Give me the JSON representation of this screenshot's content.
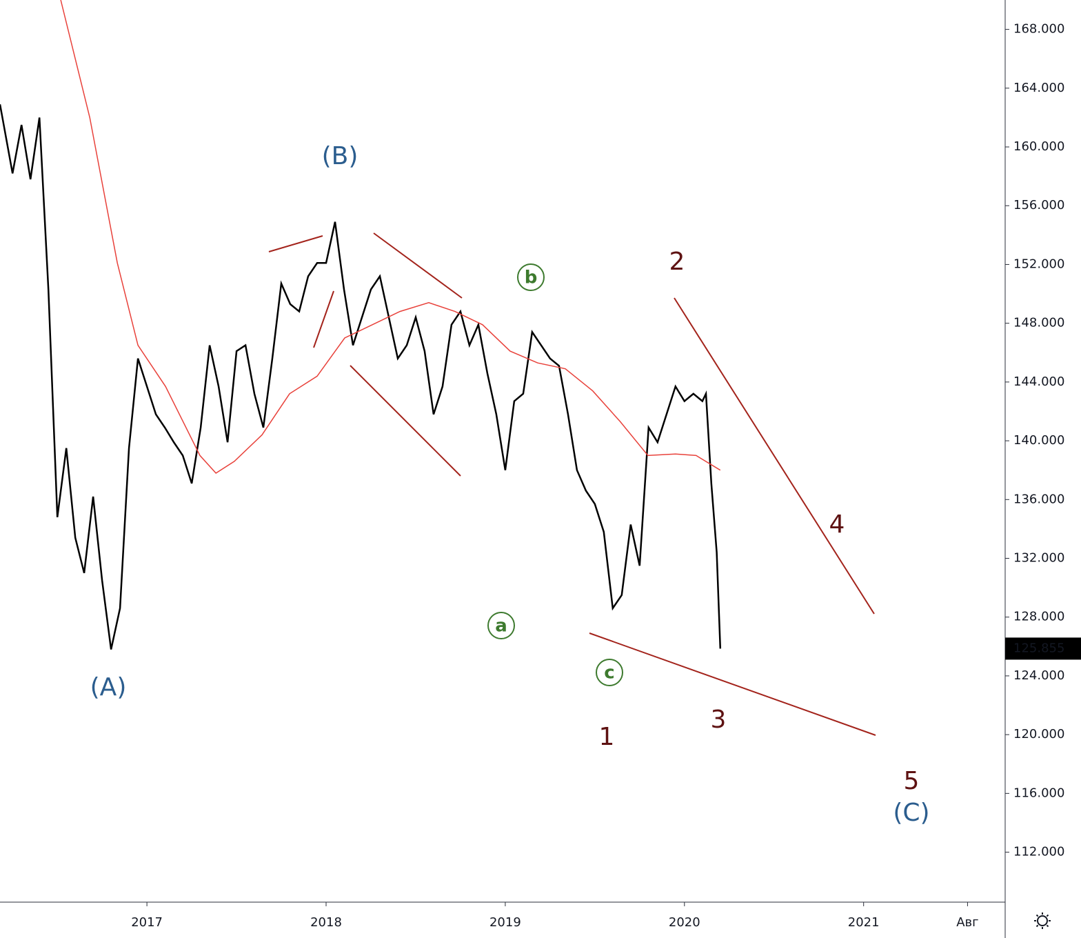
{
  "chart_data": {
    "type": "line",
    "series": [
      {
        "color": "#000000",
        "x": [
          2016.18,
          2016.25,
          2016.3,
          2016.35,
          2016.4,
          2016.45,
          2016.5,
          2016.55,
          2016.6,
          2016.65,
          2016.7,
          2016.75,
          2016.8,
          2016.85,
          2016.9,
          2016.95,
          2017.0,
          2017.05,
          2017.1,
          2017.15,
          2017.2,
          2017.25,
          2017.3,
          2017.35,
          2017.4,
          2017.45,
          2017.5,
          2017.55,
          2017.6,
          2017.65,
          2017.7,
          2017.75,
          2017.8,
          2017.85,
          2017.9,
          2017.95,
          2018.0,
          2018.05,
          2018.1,
          2018.15,
          2018.2,
          2018.25,
          2018.3,
          2018.35,
          2018.4,
          2018.45,
          2018.5,
          2018.55,
          2018.6,
          2018.65,
          2018.7,
          2018.75,
          2018.8,
          2018.85,
          2018.9,
          2018.95,
          2019.0,
          2019.05,
          2019.1,
          2019.15,
          2019.2,
          2019.25,
          2019.3,
          2019.35,
          2019.4,
          2019.45,
          2019.5,
          2019.55,
          2019.6,
          2019.65,
          2019.7,
          2019.75,
          2019.8,
          2019.85,
          2019.9,
          2019.95,
          2020.0,
          2020.05,
          2020.1,
          2020.12,
          2020.15,
          2020.18,
          2020.2
        ],
        "values": [
          162.9,
          158.2,
          161.5,
          157.8,
          162,
          150.3,
          134.8,
          139.5,
          133.4,
          131,
          136.2,
          130.5,
          125.8,
          128.6,
          139.5,
          145.6,
          143.7,
          141.8,
          140.9,
          139.9,
          139,
          137.1,
          140.9,
          146.5,
          143.7,
          139.9,
          146.1,
          146.5,
          143.2,
          140.9,
          145.6,
          150.7,
          149.3,
          148.8,
          151.2,
          152.1,
          152.1,
          154.9,
          150.3,
          146.5,
          148.4,
          150.3,
          151.2,
          148.4,
          145.6,
          146.5,
          148.4,
          146.1,
          141.8,
          143.7,
          147.9,
          148.8,
          146.5,
          147.9,
          144.6,
          141.8,
          138,
          142.7,
          143.2,
          147.4,
          146.5,
          145.6,
          145.1,
          141.8,
          138,
          136.6,
          135.7,
          133.8,
          128.6,
          129.5,
          134.3,
          131.5,
          140.9,
          139.9,
          141.8,
          143.7,
          142.7,
          143.2,
          142.7,
          143.2,
          137.1,
          132.4,
          125.855
        ]
      },
      {
        "color": "#e8413a",
        "x": [
          2016.519,
          2016.681,
          2016.835,
          2016.95,
          2017.104,
          2017.296,
          2017.385,
          2017.488,
          2017.642,
          2017.796,
          2017.95,
          2018.104,
          2018.258,
          2018.412,
          2018.573,
          2018.719,
          2018.873,
          2019.027,
          2019.181,
          2019.335,
          2019.488,
          2019.642,
          2019.796,
          2019.95,
          2020.065,
          2020.2
        ],
        "values": [
          170,
          162,
          152.1,
          146.5,
          143.7,
          139,
          137.8,
          138.6,
          140.4,
          143.2,
          144.4,
          147,
          147.9,
          148.8,
          149.4,
          148.8,
          147.9,
          146.1,
          145.3,
          144.9,
          143.4,
          141.3,
          139,
          139.1,
          139,
          138
        ]
      }
    ],
    "xlim": [
      2016.18,
      2021.79
    ],
    "xticks": [
      2017,
      2018,
      2019,
      2020,
      2021,
      {
        "value": 2021.58,
        "label": "Авг"
      }
    ],
    "ylim": [
      108.6,
      170
    ],
    "yticks": [
      {
        "value": 112,
        "label": "112.000"
      },
      {
        "value": 116,
        "label": "116.000"
      },
      {
        "value": 120,
        "label": "120.000"
      },
      {
        "value": 124,
        "label": "124.000"
      },
      {
        "value": 128,
        "label": "128.000"
      },
      {
        "value": 132,
        "label": "132.000"
      },
      {
        "value": 136,
        "label": "136.000"
      },
      {
        "value": 140,
        "label": "140.000"
      },
      {
        "value": 144,
        "label": "144.000"
      },
      {
        "value": 148,
        "label": "148.000"
      },
      {
        "value": 152,
        "label": "152.000"
      },
      {
        "value": 156,
        "label": "156.000"
      },
      {
        "value": 160,
        "label": "160.000"
      },
      {
        "value": 164,
        "label": "164.000"
      },
      {
        "value": 168,
        "label": "168.000"
      }
    ],
    "annotations": [
      {
        "text": "(A)",
        "color": "#2b5d8e"
      },
      {
        "text": "(B)",
        "color": "#2b5d8e"
      },
      {
        "text": "(C)",
        "color": "#2b5d8e"
      },
      {
        "text": "1",
        "color": "#5e1212"
      },
      {
        "text": "2",
        "color": "#5e1212"
      },
      {
        "text": "3",
        "color": "#5e1212"
      },
      {
        "text": "4",
        "color": "#5e1212"
      },
      {
        "text": "5",
        "color": "#5e1212"
      },
      {
        "text": "a",
        "color": "#3d7a2e"
      },
      {
        "text": "b",
        "color": "#3d7a2e"
      },
      {
        "text": "c",
        "color": "#3d7a2e"
      }
    ]
  }
}
